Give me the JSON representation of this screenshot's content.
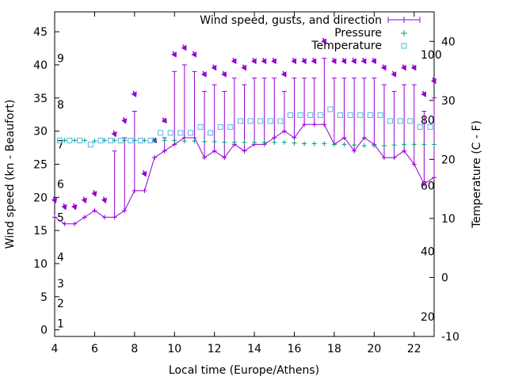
{
  "chart_data": {
    "type": "line",
    "title": "",
    "xlabel": "Local time (Europe/Athens)",
    "ylabel": "Wind speed (kn - Beaufort)",
    "y2label": "Temperature (C - F)",
    "xlim": [
      4,
      23
    ],
    "ylim": [
      -1,
      48
    ],
    "y2lim": [
      -10,
      45
    ],
    "x_ticks": [
      4,
      6,
      8,
      10,
      12,
      14,
      16,
      18,
      20,
      22
    ],
    "y_ticks": [
      0,
      5,
      10,
      15,
      20,
      25,
      30,
      35,
      40,
      45
    ],
    "y2_ticks": [
      -10,
      0,
      10,
      20,
      30,
      40
    ],
    "beaufort_labels": [
      "1",
      "2",
      "3",
      "4",
      "5",
      "6",
      "7",
      "8",
      "9"
    ],
    "beaufort_values": [
      1,
      4,
      7,
      11,
      17,
      22,
      28,
      34,
      41
    ],
    "fahrenheit_labels": [
      "20",
      "40",
      "60",
      "80",
      "100"
    ],
    "fahrenheit_values": [
      20,
      40,
      60,
      80,
      100
    ],
    "legend": {
      "position": "top-right",
      "entries": [
        "Wind speed, gusts, and direction",
        "Pressure",
        "Temperature"
      ]
    },
    "colors": {
      "wind": "#9400d3",
      "pressure": "#009e73",
      "temperature": "#56b4e9"
    },
    "series": [
      {
        "name": "Wind speed, gusts, and direction",
        "x": [
          4.0,
          4.5,
          5.0,
          5.5,
          6.0,
          6.5,
          7.0,
          7.5,
          8.0,
          8.5,
          9.0,
          9.5,
          10.0,
          10.5,
          11.0,
          11.5,
          12.0,
          12.5,
          13.0,
          13.5,
          14.0,
          14.5,
          15.0,
          15.5,
          16.0,
          16.5,
          17.0,
          17.5,
          18.0,
          18.5,
          19.0,
          19.5,
          20.0,
          20.5,
          21.0,
          21.5,
          22.0,
          22.5,
          23.0
        ],
        "speed": [
          17,
          16,
          16,
          17,
          18,
          17,
          17,
          18,
          21,
          21,
          26,
          27,
          28,
          29,
          29,
          26,
          27,
          26,
          28,
          27,
          28,
          28,
          29,
          30,
          29,
          31,
          31,
          31,
          28,
          29,
          27,
          29,
          28,
          26,
          26,
          27,
          25,
          22,
          23
        ],
        "gust": [
          17,
          16,
          16,
          17,
          18,
          17,
          27,
          29,
          33,
          21,
          26,
          29,
          39,
          40,
          39,
          36,
          37,
          36,
          38,
          37,
          38,
          38,
          38,
          36,
          38,
          38,
          38,
          41,
          38,
          38,
          38,
          38,
          38,
          37,
          36,
          37,
          37,
          33,
          35
        ],
        "direction_deg": [
          340,
          340,
          340,
          340,
          340,
          340,
          340,
          340,
          335,
          335,
          320,
          320,
          330,
          330,
          330,
          330,
          330,
          330,
          330,
          330,
          330,
          330,
          330,
          330,
          330,
          330,
          330,
          330,
          330,
          330,
          330,
          330,
          330,
          330,
          330,
          330,
          330,
          330,
          330
        ]
      },
      {
        "name": "Pressure",
        "x": [
          4.5,
          5.0,
          5.5,
          6.0,
          6.5,
          7.0,
          7.5,
          8.0,
          8.5,
          9.0,
          9.5,
          10.0,
          10.5,
          11.0,
          11.5,
          12.0,
          12.5,
          13.0,
          13.5,
          14.0,
          14.5,
          15.0,
          15.5,
          16.0,
          16.5,
          17.0,
          17.5,
          18.0,
          18.5,
          19.0,
          19.5,
          20.0,
          20.5,
          21.0,
          21.5,
          22.0,
          22.5,
          23.0
        ],
        "values": [
          28.6,
          28.6,
          28.6,
          28.5,
          28.6,
          28.6,
          28.6,
          28.6,
          28.6,
          28.6,
          28.6,
          28.6,
          28.5,
          28.5,
          28.4,
          28.4,
          28.3,
          28.3,
          28.3,
          28.3,
          28.3,
          28.3,
          28.3,
          28.2,
          28.1,
          28.1,
          28.1,
          28.0,
          28.0,
          27.9,
          27.8,
          27.8,
          27.8,
          27.9,
          28.0,
          28.0,
          28.0,
          28.0
        ]
      },
      {
        "name": "Temperature",
        "x": [
          4.25,
          4.75,
          5.25,
          5.8,
          6.3,
          6.8,
          7.3,
          7.8,
          8.3,
          8.8,
          9.3,
          9.8,
          10.3,
          10.8,
          11.3,
          11.8,
          12.3,
          12.8,
          13.3,
          13.8,
          14.3,
          14.8,
          15.3,
          15.8,
          16.3,
          16.8,
          17.3,
          17.8,
          18.3,
          18.8,
          19.3,
          19.8,
          20.3,
          20.8,
          21.3,
          21.8,
          22.3,
          22.8
        ],
        "values": [
          23.2,
          23.2,
          23.2,
          22.5,
          23.2,
          23.2,
          23.2,
          23.2,
          23.2,
          23.2,
          24.5,
          24.5,
          24.5,
          24.5,
          25.5,
          24.5,
          25.5,
          25.5,
          26.5,
          26.5,
          26.5,
          26.5,
          26.5,
          27.5,
          27.5,
          27.5,
          27.5,
          28.5,
          27.5,
          27.5,
          27.5,
          27.5,
          27.5,
          26.5,
          26.5,
          26.5,
          25.5,
          25.5
        ]
      }
    ]
  }
}
